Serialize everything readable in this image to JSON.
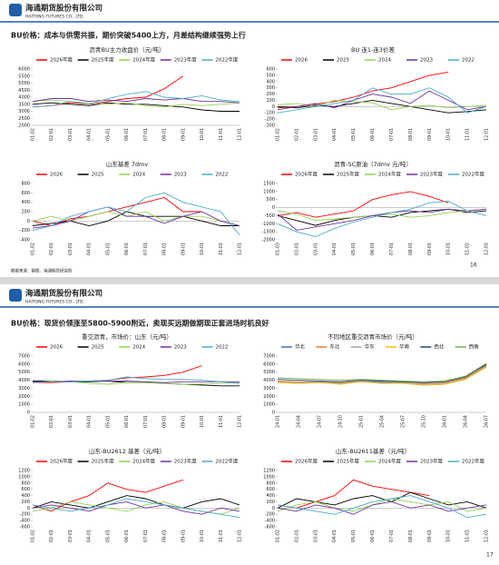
{
  "slides": [
    {
      "logo_cn": "海通期货股份有限公司",
      "logo_en": "HAITONG FUTURES CO., LTD.",
      "title": "BU价格：成本与供需共振，期价突破5400上方，月差结构继续强势上行",
      "source": "数据来源：钢联、海通期货研究所",
      "page": "16"
    },
    {
      "logo_cn": "海通期货股份有限公司",
      "logo_en": "HAITONG FUTURES CO., LTD.",
      "title": "BU价格：现货价领涨至5800-5900附近，卖现买远期做期现正套进场时机良好",
      "page": "17"
    }
  ],
  "chart_data": [
    {
      "type": "line",
      "title": "沥青BU主力收盘价（元/吨）",
      "categories": [
        "01-02",
        "02-01",
        "03-01",
        "04-01",
        "05-01",
        "06-01",
        "07-01",
        "08-01",
        "09-01",
        "10-01",
        "11-01",
        "12-01"
      ],
      "ylim": [
        2000,
        6000
      ],
      "yticks": [
        2000,
        2500,
        3000,
        3500,
        4000,
        4500,
        5000,
        5500,
        6000
      ],
      "grid": false,
      "legend": "top",
      "series": [
        {
          "name": "2026年度",
          "color": "#ff0000",
          "values": [
            3300,
            3400,
            3600,
            3500,
            3700,
            3900,
            4000,
            4600,
            5500,
            null,
            null,
            null
          ]
        },
        {
          "name": "2025年度",
          "color": "#000000",
          "values": [
            3500,
            3600,
            3500,
            3400,
            3600,
            3500,
            3500,
            3400,
            3300,
            3100,
            3000,
            3000
          ]
        },
        {
          "name": "2024年度",
          "color": "#92d050",
          "values": [
            3700,
            3800,
            3700,
            3600,
            3500,
            3600,
            3400,
            3300,
            3500,
            3400,
            3500,
            3600
          ]
        },
        {
          "name": "2023年度",
          "color": "#7030a0",
          "values": [
            3700,
            3900,
            3900,
            3700,
            3800,
            3700,
            3900,
            3800,
            3900,
            3700,
            3700,
            3600
          ]
        },
        {
          "name": "2022年度",
          "color": "#4bacc6",
          "values": [
            3300,
            3400,
            3700,
            3500,
            3900,
            4200,
            4400,
            4000,
            3900,
            4100,
            3800,
            3700
          ]
        }
      ]
    },
    {
      "type": "line",
      "title": "BU 连1-连3价差",
      "categories": [
        "01-02",
        "02-01",
        "03-01",
        "04-01",
        "05-01",
        "06-01",
        "07-01",
        "08-01",
        "09-01",
        "10-01",
        "11-01",
        "12-01"
      ],
      "ylim": [
        -300,
        600
      ],
      "yticks": [
        -300,
        -200,
        -100,
        0,
        100,
        200,
        300,
        400,
        500,
        600
      ],
      "grid": false,
      "legend": "top",
      "series": [
        {
          "name": "2026",
          "color": "#ff0000",
          "values": [
            -20,
            0,
            40,
            80,
            150,
            250,
            300,
            400,
            500,
            550,
            null,
            null
          ]
        },
        {
          "name": "2025",
          "color": "#000000",
          "values": [
            0,
            -20,
            20,
            0,
            50,
            100,
            50,
            0,
            -50,
            -100,
            -80,
            -50
          ]
        },
        {
          "name": "2024",
          "color": "#92d050",
          "values": [
            30,
            50,
            0,
            100,
            80,
            60,
            -50,
            0,
            20,
            -20,
            0,
            20
          ]
        },
        {
          "name": "2023",
          "color": "#7030a0",
          "values": [
            -50,
            0,
            50,
            -20,
            100,
            200,
            150,
            50,
            250,
            100,
            -50,
            0
          ]
        },
        {
          "name": "2022",
          "color": "#4bacc6",
          "values": [
            -100,
            -50,
            0,
            50,
            100,
            300,
            200,
            200,
            300,
            150,
            -100,
            0
          ]
        }
      ]
    },
    {
      "type": "line",
      "title": "山东基差 7dmv",
      "categories": [
        "01-02",
        "02-01",
        "03-01",
        "04-01",
        "05-01",
        "06-01",
        "07-01",
        "08-01",
        "09-01",
        "10-01",
        "11-01",
        "12-01"
      ],
      "ylim": [
        -400,
        800
      ],
      "yticks": [
        -400,
        -200,
        0,
        200,
        400,
        600,
        800
      ],
      "grid": false,
      "legend": "top",
      "series": [
        {
          "name": "2026",
          "color": "#ff0000",
          "values": [
            0,
            -100,
            50,
            100,
            200,
            300,
            400,
            500,
            200,
            200,
            null,
            null
          ]
        },
        {
          "name": "2025",
          "color": "#000000",
          "values": [
            -100,
            -50,
            0,
            -100,
            0,
            200,
            100,
            100,
            100,
            0,
            -100,
            -100
          ]
        },
        {
          "name": "2024",
          "color": "#92d050",
          "values": [
            0,
            100,
            0,
            100,
            200,
            100,
            200,
            0,
            100,
            100,
            0,
            -100
          ]
        },
        {
          "name": "2023",
          "color": "#7030a0",
          "values": [
            -150,
            -100,
            0,
            200,
            300,
            100,
            100,
            -50,
            100,
            200,
            0,
            -100
          ]
        },
        {
          "name": "2022",
          "color": "#4bacc6",
          "values": [
            -200,
            -100,
            100,
            200,
            300,
            200,
            500,
            600,
            400,
            300,
            200,
            -300
          ]
        }
      ]
    },
    {
      "type": "line",
      "title": "沥青-SC原油（7dmv 元/吨）",
      "categories": [
        "01-03",
        "02-01",
        "03-01",
        "04-01",
        "05-01",
        "06-01",
        "07-01",
        "08-01",
        "09-01",
        "10-01",
        "11-01",
        "12-01"
      ],
      "ylim": [
        -2000,
        1500
      ],
      "yticks": [
        -2000,
        -1500,
        -1000,
        -500,
        0,
        500,
        1000,
        1500
      ],
      "grid": false,
      "legend": "top",
      "series": [
        {
          "name": "2026年度",
          "color": "#ff0000",
          "values": [
            -500,
            -300,
            -600,
            -400,
            -200,
            500,
            800,
            1000,
            700,
            300,
            null,
            null
          ]
        },
        {
          "name": "2025年度",
          "color": "#000000",
          "values": [
            -500,
            -800,
            -1100,
            -800,
            -600,
            -500,
            -600,
            -300,
            -200,
            -100,
            -300,
            -200
          ]
        },
        {
          "name": "2024年度",
          "color": "#92d050",
          "values": [
            -200,
            -400,
            -800,
            -700,
            -600,
            -500,
            -400,
            -600,
            -500,
            -300,
            -200,
            -100
          ]
        },
        {
          "name": "2023年度",
          "color": "#7030a0",
          "values": [
            -400,
            -1400,
            -1200,
            -1000,
            -800,
            -500,
            -300,
            -200,
            -300,
            -100,
            -200,
            -100
          ]
        },
        {
          "name": "2022年度",
          "color": "#4bacc6",
          "values": [
            -1000,
            -1500,
            -1800,
            -1300,
            -900,
            -600,
            -300,
            -100,
            300,
            400,
            -200,
            -500
          ]
        }
      ]
    },
    {
      "type": "line",
      "title": "重交沥青，市场价：山东（元/吨）",
      "categories": [
        "01-02",
        "02-01",
        "03-01",
        "04-01",
        "05-01",
        "06-01",
        "07-01",
        "08-01",
        "09-01",
        "10-01",
        "11-01",
        "12-01"
      ],
      "ylim": [
        0,
        7000
      ],
      "yticks": [
        0,
        1000,
        2000,
        3000,
        4000,
        5000,
        6000,
        7000
      ],
      "grid": false,
      "legend": "top",
      "series": [
        {
          "name": "2026",
          "color": "#ff0000",
          "values": [
            3700,
            3700,
            3800,
            3900,
            4000,
            4300,
            4400,
            4600,
            5000,
            5800,
            null,
            null
          ]
        },
        {
          "name": "2025",
          "color": "#000000",
          "values": [
            3900,
            3900,
            3800,
            3800,
            3900,
            3700,
            3700,
            3600,
            3500,
            3400,
            3300,
            3300
          ]
        },
        {
          "name": "2024",
          "color": "#92d050",
          "values": [
            3700,
            3900,
            3800,
            3600,
            3500,
            3700,
            3700,
            3600,
            3500,
            3500,
            3600,
            3700
          ]
        },
        {
          "name": "2023",
          "color": "#7030a0",
          "values": [
            3800,
            3800,
            3900,
            3900,
            3900,
            3900,
            3800,
            3700,
            3800,
            3800,
            3800,
            3800
          ]
        },
        {
          "name": "2022",
          "color": "#4bacc6",
          "values": [
            3700,
            3800,
            3800,
            3900,
            4000,
            4400,
            4200,
            4100,
            4100,
            4000,
            3800,
            3600
          ]
        }
      ]
    },
    {
      "type": "line",
      "title": "不同地区重交沥青市场价（元/吨）",
      "categories": [
        "24-01",
        "24-04",
        "24-07",
        "24-10",
        "25-01",
        "25-04",
        "25-07",
        "25-10",
        "26-01",
        "26-04",
        "26-07"
      ],
      "ylim": [
        0,
        7000
      ],
      "yticks": [
        0,
        1000,
        2000,
        3000,
        4000,
        5000,
        6000,
        7000
      ],
      "grid": false,
      "legend": "top",
      "series": [
        {
          "name": "华北",
          "color": "#4472c4",
          "values": [
            3700,
            3600,
            3700,
            3600,
            3800,
            3700,
            3600,
            3400,
            3500,
            4200,
            5900
          ]
        },
        {
          "name": "东北",
          "color": "#ed7d31",
          "values": [
            3900,
            3800,
            3800,
            3700,
            3900,
            3800,
            3700,
            3600,
            3700,
            4300,
            5800
          ]
        },
        {
          "name": "华东",
          "color": "#a5a5a5",
          "values": [
            3800,
            3700,
            3800,
            3600,
            3900,
            3800,
            3700,
            3500,
            3600,
            4200,
            5700
          ]
        },
        {
          "name": "华南",
          "color": "#ffc000",
          "values": [
            3700,
            3600,
            3700,
            3500,
            3800,
            3600,
            3600,
            3400,
            3500,
            4100,
            5600
          ]
        },
        {
          "name": "西北",
          "color": "#264478",
          "values": [
            4100,
            4000,
            3900,
            3800,
            4000,
            3900,
            3800,
            3700,
            3800,
            4400,
            6000
          ]
        },
        {
          "name": "西南",
          "color": "#70ad47",
          "values": [
            4300,
            4200,
            4100,
            4000,
            4100,
            4000,
            3900,
            3800,
            3900,
            4500,
            6100
          ]
        }
      ]
    },
    {
      "type": "line",
      "title": "山东-BU2612 基差（元/吨）",
      "categories": [
        "01-02",
        "02-01",
        "03-01",
        "04-01",
        "05-01",
        "06-01",
        "07-01",
        "08-01",
        "09-01",
        "10-01",
        "11-01",
        "12-01"
      ],
      "ylim": [
        -600,
        1200
      ],
      "yticks": [
        -600,
        -400,
        -200,
        0,
        200,
        400,
        600,
        800,
        1000,
        1200
      ],
      "grid": false,
      "legend": "top",
      "series": [
        {
          "name": "2026年度",
          "color": "#ff0000",
          "values": [
            100,
            -100,
            200,
            400,
            800,
            600,
            500,
            700,
            900,
            null,
            null,
            null
          ]
        },
        {
          "name": "2025年度",
          "color": "#000000",
          "values": [
            0,
            200,
            100,
            0,
            200,
            400,
            300,
            100,
            0,
            200,
            300,
            100
          ]
        },
        {
          "name": "2024年度",
          "color": "#92d050",
          "values": [
            -100,
            0,
            200,
            100,
            0,
            -100,
            100,
            200,
            0,
            -100,
            -200,
            0
          ]
        },
        {
          "name": "2023年度",
          "color": "#7030a0",
          "values": [
            0,
            100,
            0,
            -100,
            100,
            200,
            0,
            100,
            -100,
            -200,
            0,
            -100
          ]
        },
        {
          "name": "2022年度",
          "color": "#4bacc6",
          "values": [
            100,
            0,
            -100,
            0,
            100,
            300,
            200,
            100,
            0,
            -100,
            -200,
            -300
          ]
        }
      ]
    },
    {
      "type": "line",
      "title": "山东-BU2611基差（元/吨）",
      "categories": [
        "01-02",
        "02-01",
        "03-01",
        "04-01",
        "05-01",
        "06-01",
        "07-01",
        "08-01",
        "09-01",
        "10-01",
        "11-01",
        "12-01"
      ],
      "ylim": [
        -600,
        1200
      ],
      "yticks": [
        -600,
        -400,
        -200,
        0,
        200,
        400,
        600,
        800,
        1000,
        1200
      ],
      "grid": false,
      "legend": "top",
      "series": [
        {
          "name": "2026年度",
          "color": "#ff0000",
          "values": [
            100,
            0,
            200,
            400,
            900,
            700,
            600,
            500,
            400,
            null,
            null,
            null
          ]
        },
        {
          "name": "2025年度",
          "color": "#000000",
          "values": [
            0,
            300,
            200,
            100,
            300,
            400,
            200,
            500,
            300,
            100,
            200,
            0
          ]
        },
        {
          "name": "2024年度",
          "color": "#92d050",
          "values": [
            -100,
            100,
            200,
            0,
            -100,
            100,
            300,
            200,
            100,
            200,
            -100,
            0
          ]
        },
        {
          "name": "2023年度",
          "color": "#7030a0",
          "values": [
            0,
            -100,
            100,
            0,
            -200,
            100,
            200,
            0,
            100,
            -100,
            0,
            100
          ]
        },
        {
          "name": "2022年度",
          "color": "#4bacc6",
          "values": [
            100,
            0,
            -100,
            -200,
            0,
            200,
            300,
            400,
            200,
            0,
            -300,
            -200
          ]
        }
      ]
    }
  ]
}
